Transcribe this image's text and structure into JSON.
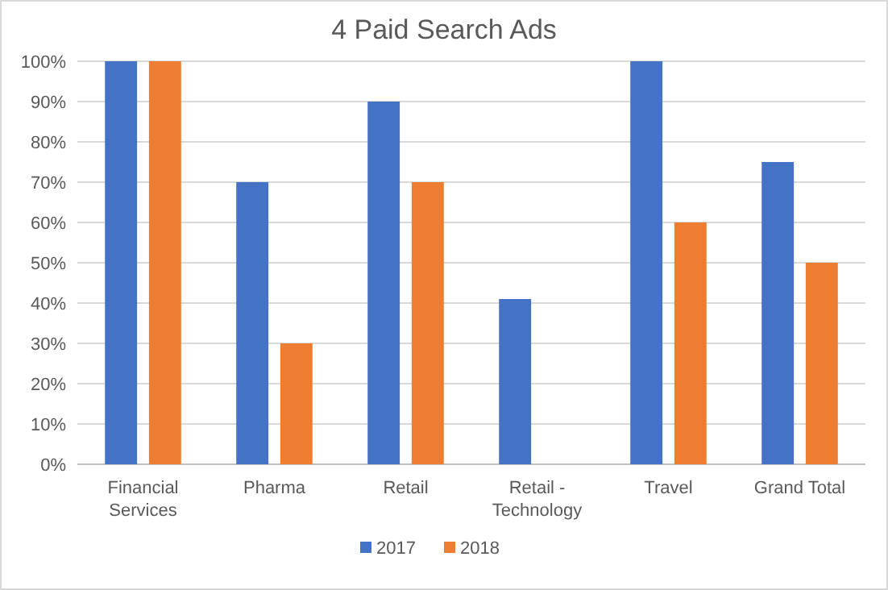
{
  "chart_data": {
    "type": "bar",
    "title": "4 Paid Search Ads",
    "categories": [
      "Financial Services",
      "Pharma",
      "Retail",
      "Retail - Technology",
      "Travel",
      "Grand Total"
    ],
    "series": [
      {
        "name": "2017",
        "color": "#4472c4",
        "values": [
          100,
          70,
          90,
          41,
          100,
          75
        ]
      },
      {
        "name": "2018",
        "color": "#ed7d31",
        "values": [
          100,
          30,
          70,
          null,
          60,
          50
        ]
      }
    ],
    "ylim": [
      0,
      100
    ],
    "yticks": [
      {
        "value": 0,
        "label": "0%"
      },
      {
        "value": 10,
        "label": "10%"
      },
      {
        "value": 20,
        "label": "20%"
      },
      {
        "value": 30,
        "label": "30%"
      },
      {
        "value": 40,
        "label": "40%"
      },
      {
        "value": 50,
        "label": "50%"
      },
      {
        "value": 60,
        "label": "60%"
      },
      {
        "value": 70,
        "label": "70%"
      },
      {
        "value": 80,
        "label": "80%"
      },
      {
        "value": 90,
        "label": "90%"
      },
      {
        "value": 100,
        "label": "100%"
      }
    ],
    "grid": "y",
    "legend": "bottom"
  }
}
